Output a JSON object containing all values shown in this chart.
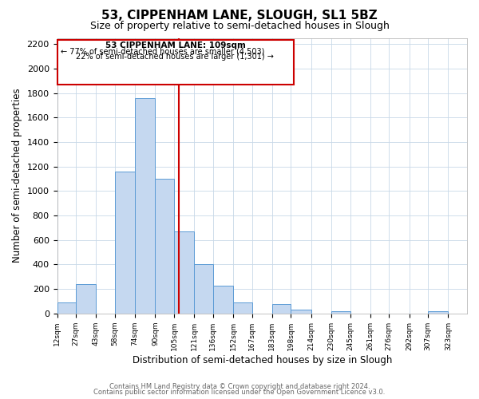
{
  "title": "53, CIPPENHAM LANE, SLOUGH, SL1 5BZ",
  "subtitle": "Size of property relative to semi-detached houses in Slough",
  "xlabel": "Distribution of semi-detached houses by size in Slough",
  "ylabel": "Number of semi-detached properties",
  "footer_line1": "Contains HM Land Registry data © Crown copyright and database right 2024.",
  "footer_line2": "Contains public sector information licensed under the Open Government Licence v3.0.",
  "annotation_line1": "53 CIPPENHAM LANE: 109sqm",
  "annotation_line2": "← 77% of semi-detached houses are smaller (4,503)",
  "annotation_line3": "22% of semi-detached houses are larger (1,301) →",
  "bar_edges": [
    12,
    27,
    43,
    58,
    74,
    90,
    105,
    121,
    136,
    152,
    167,
    183,
    198,
    214,
    230,
    245,
    261,
    276,
    292,
    307,
    323,
    338
  ],
  "bar_heights": [
    90,
    240,
    0,
    1160,
    1760,
    1100,
    670,
    400,
    230,
    90,
    0,
    75,
    30,
    0,
    20,
    0,
    0,
    0,
    0,
    20,
    0
  ],
  "bar_color": "#c5d8f0",
  "bar_edge_color": "#5b9bd5",
  "vline_x": 109,
  "vline_color": "#cc0000",
  "box_color": "#cc0000",
  "ylim": [
    0,
    2250
  ],
  "yticks": [
    0,
    200,
    400,
    600,
    800,
    1000,
    1200,
    1400,
    1600,
    1800,
    2000,
    2200
  ],
  "tick_labels": [
    "12sqm",
    "27sqm",
    "43sqm",
    "58sqm",
    "74sqm",
    "90sqm",
    "105sqm",
    "121sqm",
    "136sqm",
    "152sqm",
    "167sqm",
    "183sqm",
    "198sqm",
    "214sqm",
    "230sqm",
    "245sqm",
    "261sqm",
    "276sqm",
    "292sqm",
    "307sqm",
    "323sqm"
  ],
  "bg_color": "#ffffff",
  "grid_color": "#c8d8e8"
}
